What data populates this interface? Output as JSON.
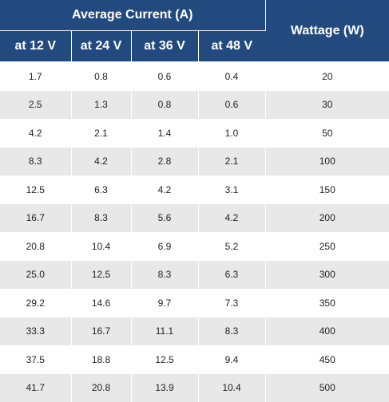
{
  "header": {
    "group_title": "Average Current (A)",
    "wattage_title": "Wattage (W)",
    "voltage_columns": [
      "at 12 V",
      "at 24 V",
      "at 36 V",
      "at 48 V"
    ]
  },
  "rows": [
    {
      "a12": "1.7",
      "a24": "0.8",
      "a36": "0.6",
      "a48": "0.4",
      "watt": "20"
    },
    {
      "a12": "2.5",
      "a24": "1.3",
      "a36": "0.8",
      "a48": "0.6",
      "watt": "30"
    },
    {
      "a12": "4.2",
      "a24": "2.1",
      "a36": "1.4",
      "a48": "1.0",
      "watt": "50"
    },
    {
      "a12": "8.3",
      "a24": "4.2",
      "a36": "2.8",
      "a48": "2.1",
      "watt": "100"
    },
    {
      "a12": "12.5",
      "a24": "6.3",
      "a36": "4.2",
      "a48": "3.1",
      "watt": "150"
    },
    {
      "a12": "16.7",
      "a24": "8.3",
      "a36": "5.6",
      "a48": "4.2",
      "watt": "200"
    },
    {
      "a12": "20.8",
      "a24": "10.4",
      "a36": "6.9",
      "a48": "5.2",
      "watt": "250"
    },
    {
      "a12": "25.0",
      "a24": "12.5",
      "a36": "8.3",
      "a48": "6.3",
      "watt": "300"
    },
    {
      "a12": "29.2",
      "a24": "14.6",
      "a36": "9.7",
      "a48": "7.3",
      "watt": "350"
    },
    {
      "a12": "33.3",
      "a24": "16.7",
      "a36": "11.1",
      "a48": "8.3",
      "watt": "400"
    },
    {
      "a12": "37.5",
      "a24": "18.8",
      "a36": "12.5",
      "a48": "9.4",
      "watt": "450"
    },
    {
      "a12": "41.7",
      "a24": "20.8",
      "a36": "13.9",
      "a48": "10.4",
      "watt": "500"
    }
  ],
  "colors": {
    "header_bg": "#234a7e",
    "row_alt_bg": "#e8e8e8"
  }
}
